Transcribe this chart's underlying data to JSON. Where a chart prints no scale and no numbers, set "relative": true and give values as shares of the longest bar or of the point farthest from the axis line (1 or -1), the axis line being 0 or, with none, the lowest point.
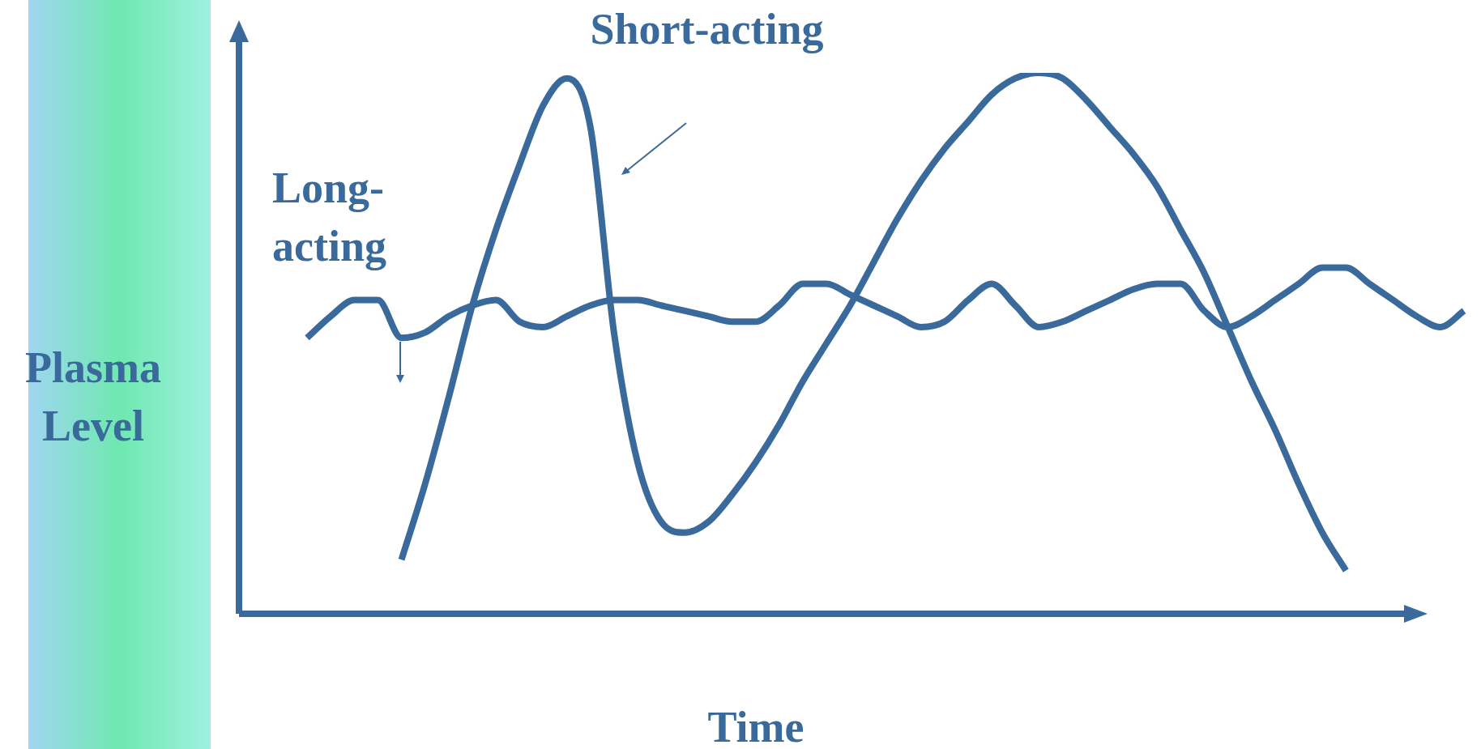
{
  "chart_data": {
    "type": "line",
    "relative": true,
    "xlabel": "Time",
    "ylabel": "Plasma Level",
    "legend": false,
    "marker": "none",
    "line_style": "solid",
    "categories": [
      null,
      null,
      null,
      null,
      null,
      null,
      null,
      null,
      null,
      null,
      null,
      null,
      null,
      null,
      null,
      null,
      null,
      null,
      null,
      null,
      null,
      null,
      null,
      null,
      null,
      null,
      null,
      null,
      null,
      null,
      null,
      null,
      null,
      null,
      null,
      null,
      null,
      null,
      null,
      null,
      null,
      null,
      null,
      null,
      null,
      null,
      null,
      null,
      null,
      null
    ],
    "series": [
      {
        "name": "Short-acting",
        "color": "#3a6a9c",
        "values": [
          null,
          null,
          null,
          null,
          0.1,
          0.24,
          0.4,
          0.57,
          0.71,
          0.83,
          0.94,
          0.99,
          0.9,
          0.52,
          0.28,
          0.17,
          0.15,
          0.17,
          0.22,
          0.28,
          0.35,
          0.43,
          0.5,
          0.57,
          0.65,
          0.73,
          0.8,
          0.86,
          0.91,
          0.96,
          0.99,
          1.0,
          0.99,
          0.95,
          0.9,
          0.85,
          0.79,
          0.71,
          0.63,
          0.53,
          0.43,
          0.34,
          0.24,
          0.15,
          0.08,
          null,
          null,
          null,
          null,
          null
        ]
      },
      {
        "name": "Long-acting",
        "color": "#3a6a9c",
        "values": [
          0.51,
          0.55,
          0.58,
          0.58,
          0.51,
          0.52,
          0.55,
          0.57,
          0.58,
          0.54,
          0.53,
          0.55,
          0.57,
          0.58,
          0.58,
          0.57,
          0.56,
          0.55,
          0.54,
          0.54,
          0.57,
          0.61,
          0.61,
          0.59,
          0.57,
          0.55,
          0.53,
          0.54,
          0.58,
          0.61,
          0.57,
          0.53,
          0.54,
          0.56,
          0.58,
          0.6,
          0.61,
          0.61,
          0.56,
          0.53,
          0.55,
          0.58,
          0.61,
          0.64,
          0.64,
          0.61,
          0.58,
          0.55,
          0.53,
          0.56
        ]
      }
    ]
  }
}
